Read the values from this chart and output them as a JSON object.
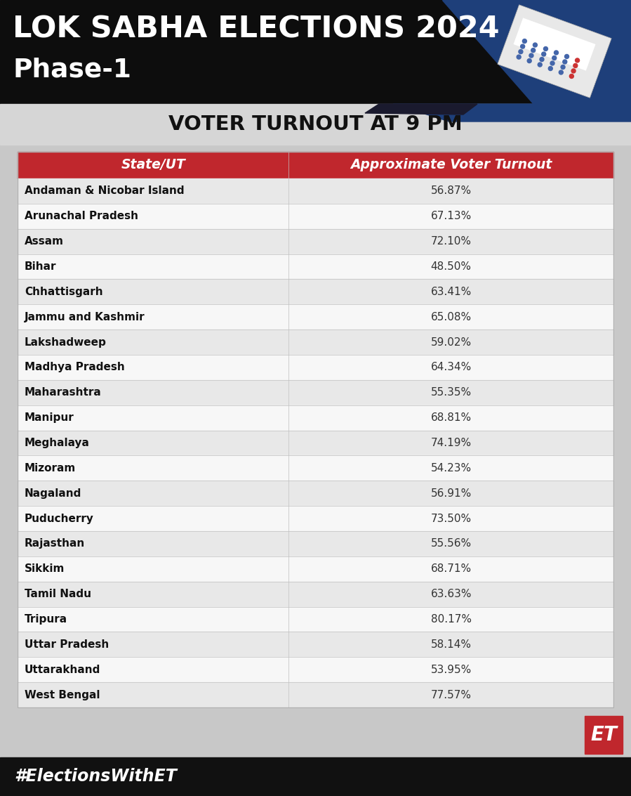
{
  "title_line1": "LOK SABHA ELECTIONS 2024",
  "title_line2": "Phase-1",
  "subtitle": "VOTER TURNOUT AT 9 PM",
  "header_col1": "State/UT",
  "header_col2": "Approximate Voter Turnout",
  "states": [
    "Andaman & Nicobar Island",
    "Arunachal Pradesh",
    "Assam",
    "Bihar",
    "Chhattisgarh",
    "Jammu and Kashmir",
    "Lakshadweep",
    "Madhya Pradesh",
    "Maharashtra",
    "Manipur",
    "Meghalaya",
    "Mizoram",
    "Nagaland",
    "Puducherry",
    "Rajasthan",
    "Sikkim",
    "Tamil Nadu",
    "Tripura",
    "Uttar Pradesh",
    "Uttarakhand",
    "West Bengal"
  ],
  "turnouts": [
    "56.87%",
    "67.13%",
    "72.10%",
    "48.50%",
    "63.41%",
    "65.08%",
    "59.02%",
    "64.34%",
    "55.35%",
    "68.81%",
    "74.19%",
    "54.23%",
    "56.91%",
    "73.50%",
    "55.56%",
    "68.71%",
    "63.63%",
    "80.17%",
    "58.14%",
    "53.95%",
    "77.57%"
  ],
  "header_bg": "#c0272d",
  "header_text_color": "#ffffff",
  "row_bg_odd": "#e8e8e8",
  "row_bg_even": "#f7f7f7",
  "title_bg": "#0d0d0d",
  "title_text_color": "#ffffff",
  "subtitle_bg": "#d6d6d6",
  "subtitle_text_color": "#111111",
  "footer_bg": "#111111",
  "footer_text": "#ElectionsWithET",
  "footer_text_color": "#ffffff",
  "et_logo_bg": "#c0272d",
  "et_logo_text": "ET",
  "overall_bg": "#c8c8c8",
  "dark_blue_accent": "#1e3f7a",
  "table_bg": "#f0f0f0"
}
